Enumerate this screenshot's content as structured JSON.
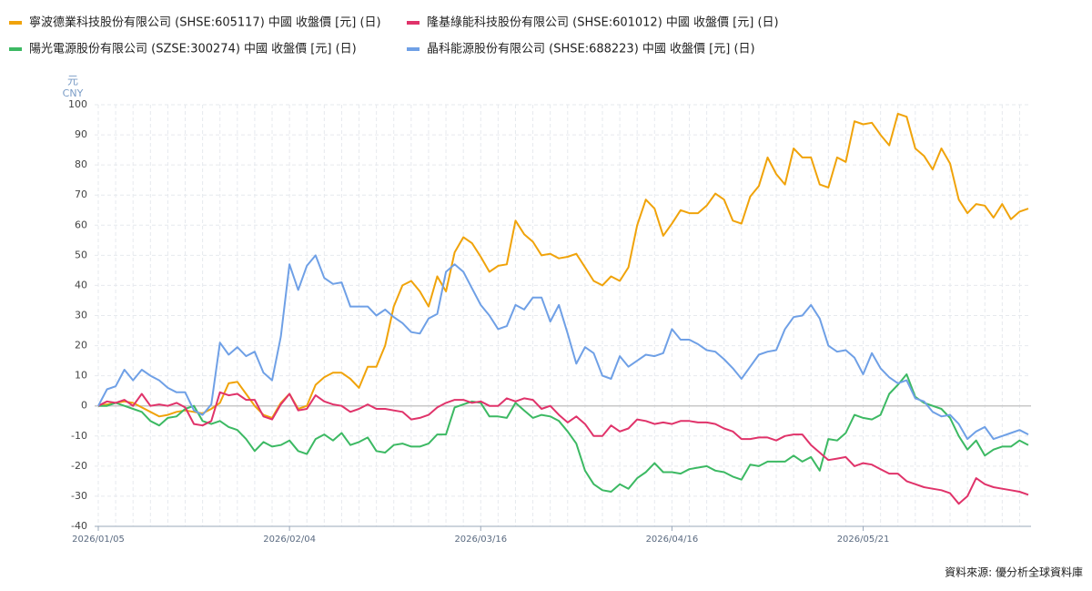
{
  "chart_data": {
    "type": "line",
    "y_unit_labels": [
      "元",
      "CNY"
    ],
    "source": "資料來源: 優分析全球資料庫",
    "categories": [
      "2026/01/05",
      null,
      null,
      null,
      null,
      null,
      null,
      null,
      null,
      null,
      null,
      null,
      null,
      null,
      null,
      null,
      null,
      null,
      null,
      null,
      null,
      null,
      "2026/02/04",
      null,
      null,
      null,
      null,
      null,
      null,
      null,
      null,
      null,
      null,
      null,
      null,
      null,
      null,
      null,
      null,
      null,
      null,
      null,
      null,
      null,
      "2026/03/16",
      null,
      null,
      null,
      null,
      null,
      null,
      null,
      null,
      null,
      null,
      null,
      null,
      null,
      null,
      null,
      null,
      null,
      null,
      null,
      null,
      null,
      "2026/04/16",
      null,
      null,
      null,
      null,
      null,
      null,
      null,
      null,
      null,
      null,
      null,
      null,
      null,
      null,
      null,
      null,
      null,
      null,
      null,
      null,
      null,
      "2026/05/21",
      null,
      null,
      null,
      null,
      null,
      null,
      null,
      null,
      null,
      null,
      null,
      null,
      null,
      null,
      null,
      null,
      null,
      null,
      null
    ],
    "series": [
      {
        "name": "寧波德業科技股份有限公司 (SHSE:605117) 中國 收盤價 [元] (日)",
        "color": "#f0a30a",
        "values": [
          0,
          0.5,
          1,
          1.5,
          1,
          -0.5,
          -2,
          -3.5,
          -3,
          -2,
          -1.5,
          -2,
          -2.5,
          -1,
          1,
          7.5,
          8,
          4,
          0,
          -3,
          -4,
          1,
          4,
          -1,
          0,
          7,
          9.5,
          11,
          11,
          9,
          6,
          13,
          13,
          20,
          33,
          40,
          41.5,
          38,
          33,
          43,
          38,
          51,
          56,
          54,
          49.5,
          44.5,
          46.5,
          47,
          61.5,
          57,
          54.5,
          50,
          50.5,
          49,
          49.5,
          50.5,
          46,
          41.5,
          40,
          43,
          41.5,
          46,
          60,
          68.5,
          65.5,
          56.5,
          60.5,
          65,
          64,
          64,
          66.5,
          70.5,
          68.5,
          61.5,
          60.5,
          69.5,
          73,
          82.5,
          77,
          73.5,
          85.5,
          82.5,
          82.5,
          73.5,
          72.5,
          82.5,
          81,
          94.5,
          93.5,
          94,
          90,
          86.5,
          97,
          96,
          85.5,
          83,
          78.5,
          85.5,
          80.5,
          68.5,
          64,
          67,
          66.5,
          62.5,
          67,
          62,
          64.5,
          65.5
        ]
      },
      {
        "name": "陽光電源股份有限公司 (SZSE:300274) 中國 收盤價 [元] (日)",
        "color": "#3cb963",
        "values": [
          0,
          0,
          1,
          0,
          -1,
          -2,
          -5,
          -6.5,
          -4,
          -3.5,
          -1,
          0,
          -5,
          -6,
          -5,
          -7,
          -8,
          -11,
          -15,
          -12,
          -13.5,
          -13,
          -11.5,
          -15,
          -16,
          -11,
          -9.5,
          -11.5,
          -9,
          -13,
          -12,
          -10.5,
          -15,
          -15.5,
          -13,
          -12.5,
          -13.5,
          -13.5,
          -12.5,
          -9.5,
          -9.5,
          -0.5,
          0.5,
          1.5,
          1,
          -3.5,
          -3.5,
          -4,
          1,
          -1.5,
          -4,
          -3,
          -3.5,
          -5,
          -8.5,
          -12.5,
          -21.5,
          -26,
          -28,
          -28.5,
          -26,
          -27.5,
          -24,
          -22,
          -19,
          -22,
          -22,
          -22.5,
          -21,
          -20.5,
          -20,
          -21.5,
          -22,
          -23.5,
          -24.5,
          -19.5,
          -20,
          -18.5,
          -18.5,
          -18.5,
          -16.5,
          -18.5,
          -17,
          -21.5,
          -11,
          -11.5,
          -9,
          -3,
          -4,
          -4.5,
          -3,
          4,
          7,
          10.5,
          3,
          1,
          0,
          -1,
          -4,
          -10,
          -14.5,
          -11.5,
          -16.5,
          -14.5,
          -13.5,
          -13.5,
          -11.5,
          -13
        ]
      },
      {
        "name": "隆基綠能科技股份有限公司 (SHSE:601012) 中國 收盤價 [元] (日)",
        "color": "#e0336a",
        "values": [
          0,
          1.5,
          1,
          2,
          0,
          4,
          0,
          0.5,
          0,
          1,
          -0.5,
          -6,
          -6.5,
          -5,
          4.5,
          3.5,
          4,
          2,
          2,
          -3.5,
          -4.5,
          0.5,
          4,
          -1.5,
          -1,
          3.5,
          1.5,
          0.5,
          0,
          -2,
          -1,
          0.5,
          -1,
          -1,
          -1.5,
          -2,
          -4.5,
          -4,
          -3,
          -0.5,
          1,
          2,
          2,
          1,
          1.5,
          0,
          0,
          2.5,
          1.5,
          2.5,
          2,
          -1,
          0,
          -3,
          -5.5,
          -3.5,
          -6,
          -10,
          -10,
          -6.5,
          -8.5,
          -7.5,
          -4.5,
          -5,
          -6,
          -5.5,
          -6,
          -5,
          -5,
          -5.5,
          -5.5,
          -6,
          -7.5,
          -8.5,
          -11,
          -11,
          -10.5,
          -10.5,
          -11.5,
          -10,
          -9.5,
          -9.5,
          -13,
          -15.5,
          -18,
          -17.5,
          -17,
          -20,
          -19,
          -19.5,
          -21,
          -22.5,
          -22.5,
          -25,
          -26,
          -27,
          -27.5,
          -28,
          -29,
          -32.5,
          -30,
          -24,
          -26,
          -27,
          -27.5,
          -28,
          -28.5,
          -29.5
        ]
      },
      {
        "name": "晶科能源股份有限公司 (SHSE:688223) 中國 收盤價 [元] (日)",
        "color": "#6fa0e6",
        "values": [
          0,
          5.5,
          6.5,
          12,
          8.5,
          12,
          10,
          8.5,
          6,
          4.5,
          4.5,
          -1.5,
          -3,
          0.5,
          21,
          17,
          19.5,
          16.5,
          18,
          11,
          8.5,
          23,
          47,
          38.5,
          46.5,
          50,
          42.5,
          40.5,
          41,
          33,
          33,
          33,
          30,
          32,
          29.5,
          27.5,
          24.5,
          24,
          29,
          30.5,
          44.5,
          47,
          44.5,
          39,
          33.5,
          30,
          25.5,
          26.5,
          33.5,
          32,
          36,
          36,
          28,
          33.5,
          24,
          14,
          19.5,
          17.5,
          10,
          9,
          16.5,
          13,
          15,
          17,
          16.5,
          17.5,
          25.5,
          22,
          22,
          20.5,
          18.5,
          18,
          15.5,
          12.5,
          9,
          13,
          17,
          18,
          18.5,
          25.5,
          29.5,
          30,
          33.5,
          29,
          20,
          18,
          18.5,
          16,
          10.5,
          17.5,
          12.5,
          9.5,
          7.5,
          8.5,
          2.5,
          1.5,
          -2,
          -3.5,
          -3,
          -6,
          -11,
          -8.5,
          -7,
          -11,
          -10,
          -9,
          -8,
          -9.5
        ]
      }
    ],
    "ylim": [
      -40,
      100
    ],
    "yticks": [
      -40,
      -30,
      -20,
      -10,
      0,
      10,
      20,
      30,
      40,
      50,
      60,
      70,
      80,
      90,
      100
    ],
    "grid": true
  }
}
